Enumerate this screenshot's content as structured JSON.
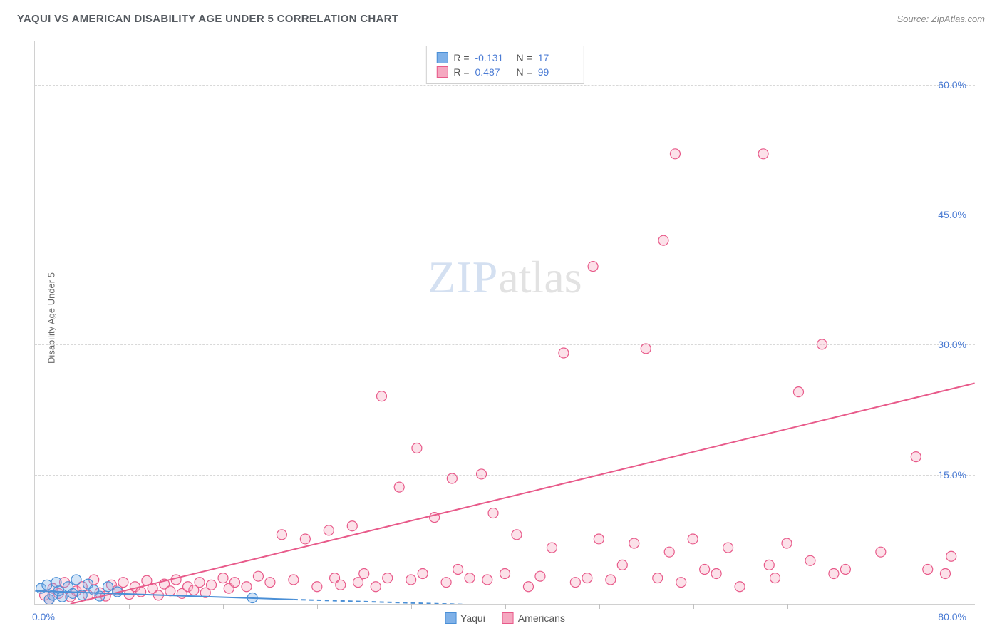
{
  "title": "YAQUI VS AMERICAN DISABILITY AGE UNDER 5 CORRELATION CHART",
  "source": "Source: ZipAtlas.com",
  "ylabel": "Disability Age Under 5",
  "watermark": {
    "part1": "ZIP",
    "part2": "atlas"
  },
  "chart": {
    "type": "scatter",
    "xlim": [
      0,
      80
    ],
    "ylim": [
      0,
      65
    ],
    "background_color": "#ffffff",
    "grid_color": "#d8d8d8",
    "grid_dash": true,
    "yticks": [
      {
        "value": 15,
        "label": "15.0%"
      },
      {
        "value": 30,
        "label": "30.0%"
      },
      {
        "value": 45,
        "label": "45.0%"
      },
      {
        "value": 60,
        "label": "60.0%"
      }
    ],
    "xticks": [
      8,
      16,
      24,
      32,
      40,
      48,
      56,
      64,
      72
    ],
    "x_start_label": "0.0%",
    "x_end_label": "80.0%",
    "axis_label_color": "#4a7bd4",
    "axis_label_fontsize": 14,
    "title_fontsize": 15,
    "title_color": "#555a60",
    "marker_radius": 7,
    "marker_stroke_width": 1.2,
    "marker_fill_opacity": 0.35,
    "trend_line_width": 2,
    "trend_extension_dash": "6,5"
  },
  "series": {
    "yaqui": {
      "label": "Yaqui",
      "color": "#7fb1e8",
      "stroke": "#4a8fd6",
      "r_label": "R =",
      "r_value": "-0.131",
      "n_label": "N =",
      "n_value": "17",
      "trend": {
        "x1": 0,
        "y1": 1.5,
        "x2": 22,
        "y2": 0.5,
        "ext_x2": 55,
        "ext_y2": -0.8
      },
      "points": [
        [
          0.5,
          1.8
        ],
        [
          1.0,
          2.2
        ],
        [
          1.2,
          0.5
        ],
        [
          1.5,
          1.0
        ],
        [
          1.8,
          2.5
        ],
        [
          2.0,
          1.5
        ],
        [
          2.3,
          0.8
        ],
        [
          2.8,
          2.0
        ],
        [
          3.2,
          1.2
        ],
        [
          3.5,
          2.8
        ],
        [
          4.0,
          1.0
        ],
        [
          4.5,
          2.3
        ],
        [
          5.0,
          1.6
        ],
        [
          5.5,
          0.9
        ],
        [
          6.2,
          2.0
        ],
        [
          7.0,
          1.4
        ],
        [
          18.5,
          0.7
        ]
      ]
    },
    "americans": {
      "label": "Americans",
      "color": "#f5a8c0",
      "stroke": "#e85a8a",
      "r_label": "R =",
      "r_value": "0.487",
      "n_label": "N =",
      "n_value": "99",
      "trend": {
        "x1": 3,
        "y1": 0,
        "x2": 80,
        "y2": 25.5
      },
      "points": [
        [
          0.8,
          1.0
        ],
        [
          1.2,
          0.5
        ],
        [
          1.5,
          1.8
        ],
        [
          2.0,
          1.2
        ],
        [
          2.5,
          2.5
        ],
        [
          3.0,
          0.8
        ],
        [
          3.5,
          1.5
        ],
        [
          4.0,
          2.0
        ],
        [
          4.5,
          1.0
        ],
        [
          5.0,
          2.8
        ],
        [
          5.5,
          1.3
        ],
        [
          6.0,
          0.9
        ],
        [
          6.5,
          2.2
        ],
        [
          7.0,
          1.6
        ],
        [
          7.5,
          2.5
        ],
        [
          8.0,
          1.1
        ],
        [
          8.5,
          2.0
        ],
        [
          9.0,
          1.4
        ],
        [
          9.5,
          2.7
        ],
        [
          10.0,
          1.8
        ],
        [
          10.5,
          1.0
        ],
        [
          11.0,
          2.3
        ],
        [
          11.5,
          1.5
        ],
        [
          12.0,
          2.8
        ],
        [
          12.5,
          1.2
        ],
        [
          13.0,
          2.0
        ],
        [
          13.5,
          1.6
        ],
        [
          14.0,
          2.5
        ],
        [
          14.5,
          1.3
        ],
        [
          15.0,
          2.2
        ],
        [
          16.0,
          3.0
        ],
        [
          16.5,
          1.8
        ],
        [
          17.0,
          2.5
        ],
        [
          18.0,
          2.0
        ],
        [
          19.0,
          3.2
        ],
        [
          20.0,
          2.5
        ],
        [
          21.0,
          8.0
        ],
        [
          22.0,
          2.8
        ],
        [
          23.0,
          7.5
        ],
        [
          24.0,
          2.0
        ],
        [
          25.0,
          8.5
        ],
        [
          25.5,
          3.0
        ],
        [
          26.0,
          2.2
        ],
        [
          27.0,
          9.0
        ],
        [
          27.5,
          2.5
        ],
        [
          28.0,
          3.5
        ],
        [
          29.0,
          2.0
        ],
        [
          29.5,
          24.0
        ],
        [
          30.0,
          3.0
        ],
        [
          31.0,
          13.5
        ],
        [
          32.0,
          2.8
        ],
        [
          32.5,
          18.0
        ],
        [
          33.0,
          3.5
        ],
        [
          34.0,
          10.0
        ],
        [
          35.0,
          2.5
        ],
        [
          35.5,
          14.5
        ],
        [
          36.0,
          4.0
        ],
        [
          37.0,
          3.0
        ],
        [
          38.0,
          15.0
        ],
        [
          38.5,
          2.8
        ],
        [
          39.0,
          10.5
        ],
        [
          40.0,
          3.5
        ],
        [
          41.0,
          8.0
        ],
        [
          42.0,
          2.0
        ],
        [
          43.0,
          3.2
        ],
        [
          44.0,
          6.5
        ],
        [
          45.0,
          29.0
        ],
        [
          46.0,
          2.5
        ],
        [
          47.0,
          3.0
        ],
        [
          47.5,
          39.0
        ],
        [
          48.0,
          7.5
        ],
        [
          49.0,
          2.8
        ],
        [
          50.0,
          4.5
        ],
        [
          51.0,
          7.0
        ],
        [
          52.0,
          29.5
        ],
        [
          53.0,
          3.0
        ],
        [
          53.5,
          42.0
        ],
        [
          54.0,
          6.0
        ],
        [
          54.5,
          52.0
        ],
        [
          55.0,
          2.5
        ],
        [
          56.0,
          7.5
        ],
        [
          57.0,
          4.0
        ],
        [
          58.0,
          3.5
        ],
        [
          59.0,
          6.5
        ],
        [
          60.0,
          2.0
        ],
        [
          62.0,
          52.0
        ],
        [
          62.5,
          4.5
        ],
        [
          63.0,
          3.0
        ],
        [
          64.0,
          7.0
        ],
        [
          65.0,
          24.5
        ],
        [
          66.0,
          5.0
        ],
        [
          67.0,
          30.0
        ],
        [
          68.0,
          3.5
        ],
        [
          69.0,
          4.0
        ],
        [
          72.0,
          6.0
        ],
        [
          75.0,
          17.0
        ],
        [
          76.0,
          4.0
        ],
        [
          77.5,
          3.5
        ],
        [
          78.0,
          5.5
        ]
      ]
    }
  }
}
